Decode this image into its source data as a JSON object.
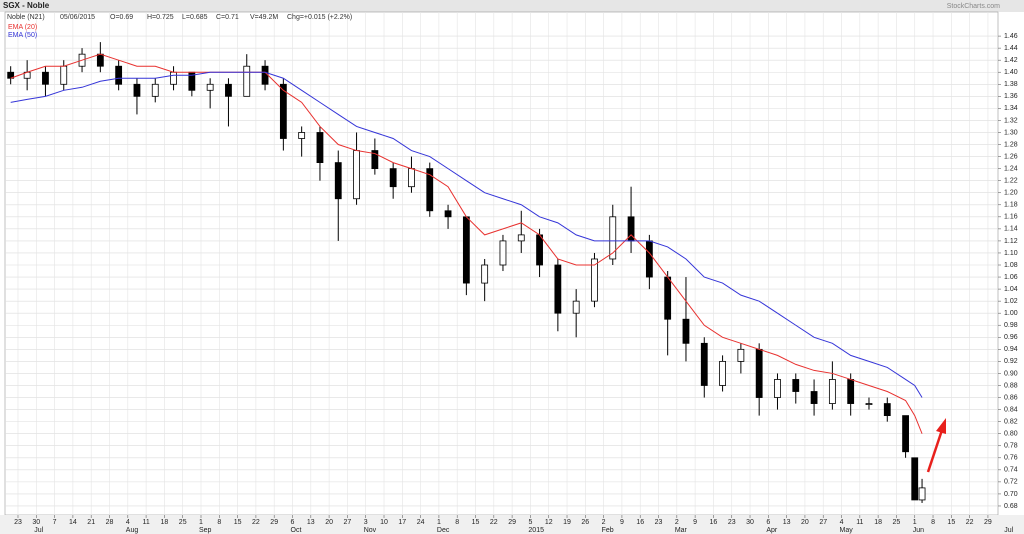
{
  "chart_data": {
    "type": "candlestick",
    "title": "SGX - Noble",
    "subtitle": "Noble (N21)",
    "date": "05/06/2015",
    "quote": [
      "O=0.69",
      "H=0.725",
      "L=0.685",
      "C=0.71",
      "V=49.2M",
      "Chg=+0.015 (+2.2%)"
    ],
    "watermark": "StockCharts.com",
    "x": [
      -0.4,
      0.5,
      1.5,
      2.5,
      3.5,
      4.5,
      5.5,
      6.5,
      7.5,
      8.5,
      9.5,
      10.5,
      11.5,
      12.5,
      13.5,
      14.5,
      15.5,
      16.5,
      17.5,
      18.5,
      19.5,
      20.5,
      21.5,
      22.5,
      23.5,
      24.5,
      25.5,
      26.5,
      27.5,
      28.5,
      29.5,
      30.5,
      31.5,
      32.5,
      33.5,
      34.5,
      35.5,
      36.5,
      37.5,
      38.5,
      39.5,
      40.5,
      41.5,
      42.5,
      43.5,
      44.5,
      45.5,
      46.5,
      47.5,
      48.5,
      49.0,
      49.4
    ],
    "open": [
      1.4,
      1.39,
      1.4,
      1.38,
      1.41,
      1.43,
      1.41,
      1.38,
      1.36,
      1.38,
      1.4,
      1.37,
      1.38,
      1.36,
      1.41,
      1.38,
      1.29,
      1.3,
      1.25,
      1.19,
      1.27,
      1.24,
      1.21,
      1.24,
      1.17,
      1.16,
      1.05,
      1.08,
      1.12,
      1.13,
      1.08,
      1.0,
      1.02,
      1.09,
      1.16,
      1.12,
      1.06,
      0.99,
      0.95,
      0.88,
      0.92,
      0.94,
      0.86,
      0.89,
      0.87,
      0.85,
      0.89,
      0.85,
      0.85,
      0.83,
      0.76,
      0.69
    ],
    "high": [
      1.41,
      1.42,
      1.41,
      1.42,
      1.44,
      1.45,
      1.42,
      1.39,
      1.39,
      1.41,
      1.4,
      1.39,
      1.39,
      1.43,
      1.42,
      1.39,
      1.31,
      1.31,
      1.27,
      1.3,
      1.29,
      1.25,
      1.26,
      1.25,
      1.18,
      1.16,
      1.09,
      1.13,
      1.17,
      1.14,
      1.09,
      1.04,
      1.1,
      1.18,
      1.21,
      1.13,
      1.07,
      1.06,
      0.96,
      0.93,
      0.95,
      0.95,
      0.9,
      0.9,
      0.89,
      0.92,
      0.9,
      0.86,
      0.86,
      0.83,
      0.76,
      0.725
    ],
    "low": [
      1.38,
      1.37,
      1.36,
      1.37,
      1.4,
      1.4,
      1.37,
      1.33,
      1.35,
      1.37,
      1.36,
      1.34,
      1.31,
      1.36,
      1.37,
      1.27,
      1.26,
      1.22,
      1.12,
      1.18,
      1.23,
      1.19,
      1.2,
      1.16,
      1.14,
      1.03,
      1.02,
      1.07,
      1.1,
      1.06,
      0.97,
      0.96,
      1.01,
      1.08,
      1.1,
      1.04,
      0.93,
      0.92,
      0.86,
      0.87,
      0.9,
      0.83,
      0.84,
      0.85,
      0.83,
      0.84,
      0.83,
      0.84,
      0.82,
      0.76,
      0.69,
      0.685
    ],
    "close": [
      1.39,
      1.4,
      1.38,
      1.41,
      1.43,
      1.41,
      1.38,
      1.36,
      1.38,
      1.4,
      1.37,
      1.38,
      1.36,
      1.41,
      1.38,
      1.29,
      1.3,
      1.25,
      1.19,
      1.27,
      1.24,
      1.21,
      1.24,
      1.17,
      1.16,
      1.05,
      1.08,
      1.12,
      1.13,
      1.08,
      1.0,
      1.02,
      1.09,
      1.16,
      1.12,
      1.06,
      0.99,
      0.95,
      0.88,
      0.92,
      0.94,
      0.86,
      0.89,
      0.87,
      0.85,
      0.89,
      0.85,
      0.85,
      0.83,
      0.77,
      0.69,
      0.71
    ],
    "up_color": "#ffffff",
    "down_color": "#000000",
    "series": [
      {
        "name": "EMA (20)",
        "color": "#e8312f",
        "values": [
          1.39,
          1.4,
          1.41,
          1.41,
          1.42,
          1.43,
          1.42,
          1.41,
          1.41,
          1.4,
          1.4,
          1.4,
          1.4,
          1.4,
          1.4,
          1.37,
          1.35,
          1.31,
          1.28,
          1.27,
          1.265,
          1.25,
          1.24,
          1.23,
          1.21,
          1.16,
          1.13,
          1.14,
          1.15,
          1.13,
          1.09,
          1.08,
          1.08,
          1.1,
          1.13,
          1.1,
          1.06,
          1.02,
          0.98,
          0.96,
          0.95,
          0.94,
          0.93,
          0.915,
          0.905,
          0.9,
          0.89,
          0.88,
          0.87,
          0.855,
          0.83,
          0.8
        ]
      },
      {
        "name": "EMA (50)",
        "color": "#3535d8",
        "values": [
          1.35,
          1.355,
          1.36,
          1.37,
          1.375,
          1.385,
          1.39,
          1.39,
          1.39,
          1.395,
          1.395,
          1.4,
          1.4,
          1.4,
          1.4,
          1.39,
          1.37,
          1.35,
          1.33,
          1.31,
          1.3,
          1.29,
          1.27,
          1.26,
          1.24,
          1.22,
          1.2,
          1.19,
          1.18,
          1.16,
          1.15,
          1.13,
          1.12,
          1.12,
          1.12,
          1.12,
          1.11,
          1.09,
          1.06,
          1.05,
          1.03,
          1.02,
          1.0,
          0.98,
          0.96,
          0.95,
          0.93,
          0.92,
          0.91,
          0.89,
          0.88,
          0.86
        ]
      }
    ],
    "xlim": [
      -0.71,
      53.55
    ],
    "ylim": [
      0.665,
      1.5
    ],
    "grid": true,
    "yticks": [
      0.68,
      {
        "value": 0.7,
        "label": "0.70"
      },
      0.72,
      0.74,
      0.76,
      0.78,
      {
        "value": 0.8,
        "label": "0.80"
      },
      0.82,
      0.84,
      0.86,
      0.88,
      {
        "value": 0.9,
        "label": "0.90"
      },
      0.92,
      0.94,
      0.96,
      0.98,
      {
        "value": 1,
        "label": "1.00"
      },
      1.02,
      1.04,
      1.06,
      1.08,
      {
        "value": 1.1,
        "label": "1.10"
      },
      1.12,
      1.14,
      1.16,
      1.18,
      {
        "value": 1.2,
        "label": "1.20"
      },
      1.22,
      1.24,
      1.26,
      1.28,
      {
        "value": 1.3,
        "label": "1.30"
      },
      1.32,
      1.34,
      1.36,
      1.38,
      {
        "value": 1.4,
        "label": "1.40"
      },
      1.42,
      1.44,
      1.46
    ],
    "xticks": [
      {
        "value": 0,
        "label": "23"
      },
      {
        "value": 1,
        "label": "30"
      },
      {
        "value": 2,
        "label": "7"
      },
      {
        "value": 3,
        "label": "14"
      },
      {
        "value": 4,
        "label": "21"
      },
      {
        "value": 5,
        "label": "28"
      },
      {
        "value": 6,
        "label": "4"
      },
      {
        "value": 7,
        "label": "11"
      },
      {
        "value": 8,
        "label": "18"
      },
      {
        "value": 9,
        "label": "25"
      },
      {
        "value": 10,
        "label": "1"
      },
      {
        "value": 11,
        "label": "8"
      },
      {
        "value": 12,
        "label": "15"
      },
      {
        "value": 13,
        "label": "22"
      },
      {
        "value": 14,
        "label": "29"
      },
      {
        "value": 15,
        "label": "6"
      },
      {
        "value": 16,
        "label": "13"
      },
      {
        "value": 17,
        "label": "20"
      },
      {
        "value": 18,
        "label": "27"
      },
      {
        "value": 19,
        "label": "3"
      },
      {
        "value": 20,
        "label": "10"
      },
      {
        "value": 21,
        "label": "17"
      },
      {
        "value": 22,
        "label": "24"
      },
      {
        "value": 23,
        "label": "1"
      },
      {
        "value": 24,
        "label": "8"
      },
      {
        "value": 25,
        "label": "15"
      },
      {
        "value": 26,
        "label": "22"
      },
      {
        "value": 27,
        "label": "29"
      },
      {
        "value": 28,
        "label": "5"
      },
      {
        "value": 29,
        "label": "12"
      },
      {
        "value": 30,
        "label": "19"
      },
      {
        "value": 31,
        "label": "26"
      },
      {
        "value": 32,
        "label": "2"
      },
      {
        "value": 33,
        "label": "9"
      },
      {
        "value": 34,
        "label": "16"
      },
      {
        "value": 35,
        "label": "23"
      },
      {
        "value": 36,
        "label": "2"
      },
      {
        "value": 37,
        "label": "9"
      },
      {
        "value": 38,
        "label": "16"
      },
      {
        "value": 39,
        "label": "23"
      },
      {
        "value": 40,
        "label": "30"
      },
      {
        "value": 41,
        "label": "6"
      },
      {
        "value": 42,
        "label": "13"
      },
      {
        "value": 43,
        "label": "20"
      },
      {
        "value": 44,
        "label": "27"
      },
      {
        "value": 45,
        "label": "4"
      },
      {
        "value": 46,
        "label": "11"
      },
      {
        "value": 47,
        "label": "18"
      },
      {
        "value": 48,
        "label": "25"
      },
      {
        "value": 49,
        "label": "1"
      },
      {
        "value": 50,
        "label": "8"
      },
      {
        "value": 51,
        "label": "15"
      },
      {
        "value": 52,
        "label": "22"
      },
      {
        "value": 53,
        "label": "29"
      }
    ],
    "xmonths": [
      {
        "value": 1,
        "label": "Jul"
      },
      {
        "value": 6,
        "label": "Aug"
      },
      {
        "value": 10,
        "label": "Sep"
      },
      {
        "value": 15,
        "label": "Oct"
      },
      {
        "value": 19,
        "label": "Nov"
      },
      {
        "value": 23,
        "label": "Dec"
      },
      {
        "value": 28,
        "label": "2015"
      },
      {
        "value": 32,
        "label": "Feb"
      },
      {
        "value": 36,
        "label": "Mar"
      },
      {
        "value": 41,
        "label": "Apr"
      },
      {
        "value": 45,
        "label": "May"
      },
      {
        "value": 49,
        "label": "Jun"
      },
      {
        "value": 54,
        "label": "Jul"
      }
    ]
  }
}
